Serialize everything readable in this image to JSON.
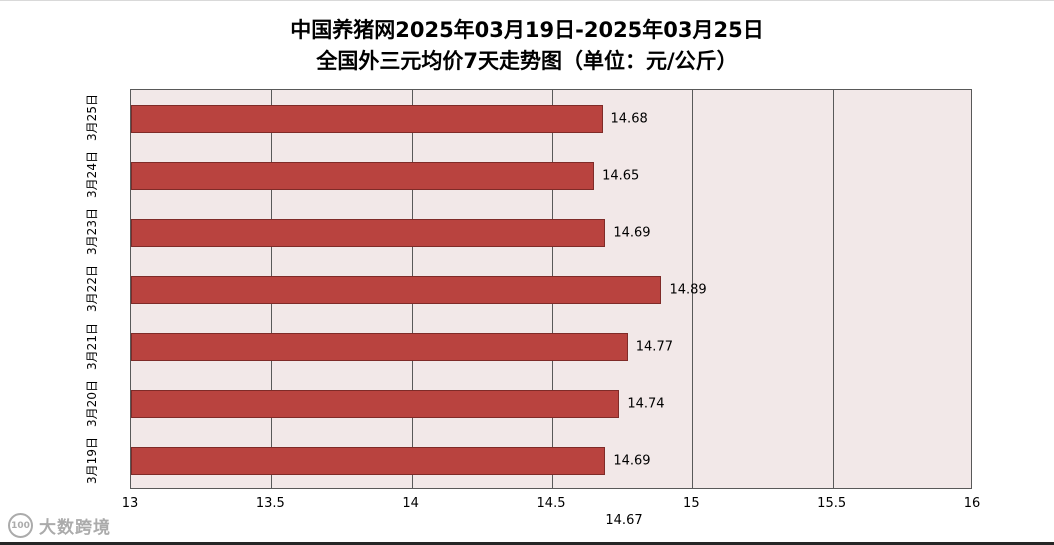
{
  "title": {
    "line1": "中国养猪网2025年03月19日-2025年03月25日",
    "line2": "全国外三元均价7天走势图（单位：元/公斤）"
  },
  "chart_data": {
    "type": "bar",
    "orientation": "horizontal",
    "title": "中国养猪网2025年03月19日-2025年03月25日 全国外三元均价7天走势图（单位：元/公斤）",
    "categories": [
      "3月25日",
      "3月24日",
      "3月23日",
      "3月22日",
      "3月21日",
      "3月20日",
      "3月19日"
    ],
    "values": [
      14.68,
      14.65,
      14.69,
      14.89,
      14.77,
      14.74,
      14.69
    ],
    "value_labels": [
      "14.68",
      "14.65",
      "14.69",
      "14.89",
      "14.77",
      "14.74",
      "14.69"
    ],
    "xlim": [
      13,
      16
    ],
    "x_ticks": [
      13,
      13.5,
      14,
      14.5,
      15,
      15.5,
      16
    ],
    "x_tick_labels": [
      "13",
      "13.5",
      "14",
      "14.5",
      "15",
      "15.5",
      "16"
    ],
    "bottom_label": "14.67",
    "grid": true,
    "bar_color": "#b9433f",
    "bar_border_color": "#7f2b28",
    "plot_bg": "#f2e8e8",
    "grid_color": "#595959"
  },
  "watermark": {
    "logo_text": "100",
    "text": "大数跨境"
  }
}
